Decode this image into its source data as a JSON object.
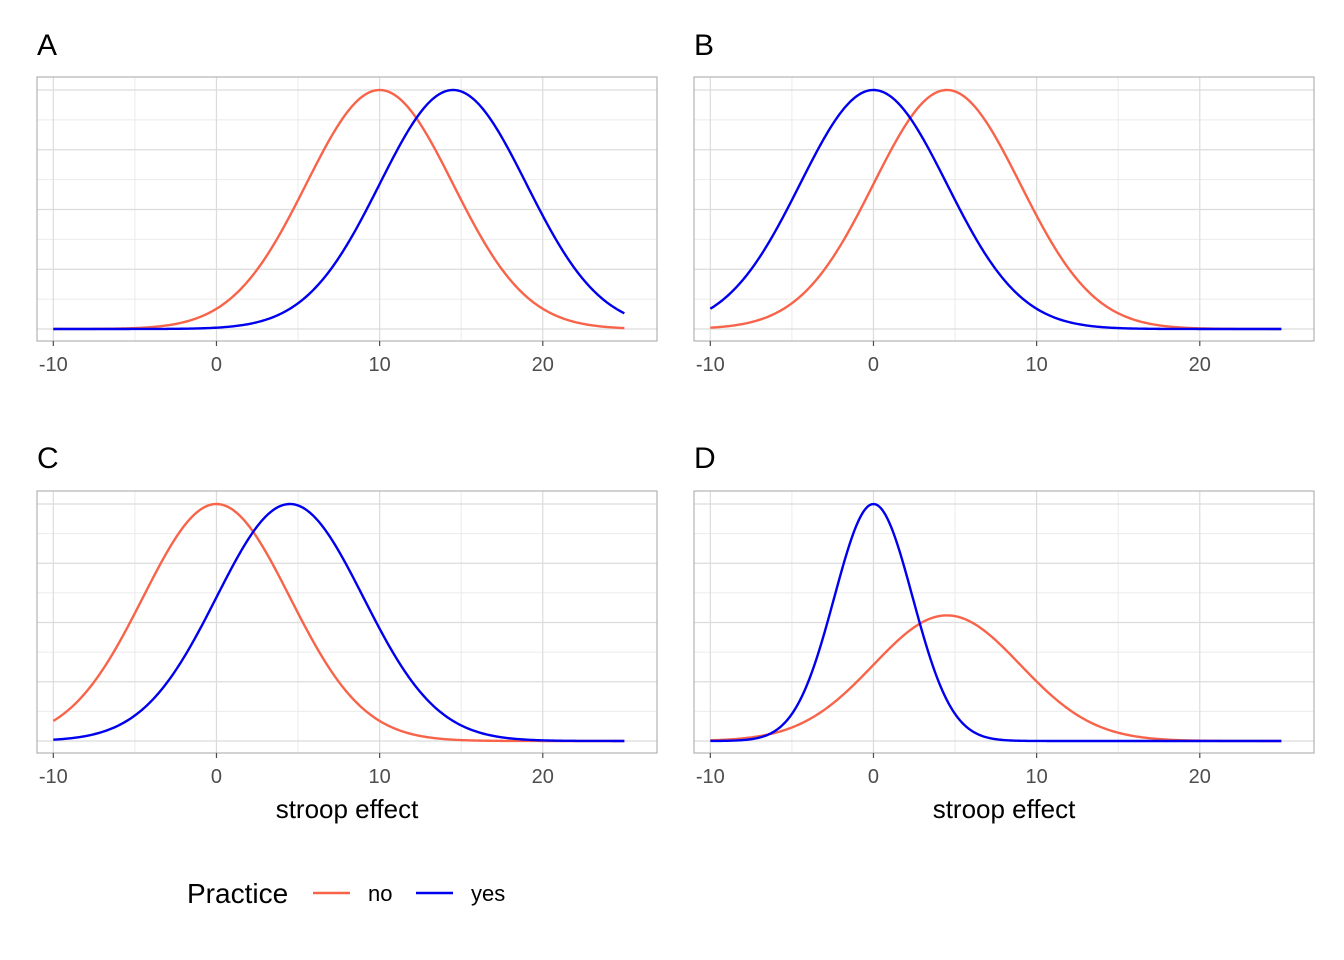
{
  "legend": {
    "title": "Practice",
    "entries": [
      {
        "label": "no",
        "color": "#F8644A"
      },
      {
        "label": "yes",
        "color": "#0000EE"
      }
    ]
  },
  "chart_data": [
    {
      "type": "line",
      "panel": "A",
      "xlabel": "",
      "xlim": [
        -11,
        27
      ],
      "xticks": [
        "-10",
        "0",
        "10",
        "20"
      ],
      "xtick_values": [
        -10,
        0,
        10,
        20
      ],
      "grid": true,
      "series": [
        {
          "name": "no",
          "color": "#F8644A",
          "distribution": "normal",
          "mean": 10,
          "sd": 4.5,
          "peak_rel": 1.0
        },
        {
          "name": "yes",
          "color": "#0000EE",
          "distribution": "normal",
          "mean": 14.5,
          "sd": 4.5,
          "peak_rel": 1.0
        }
      ]
    },
    {
      "type": "line",
      "panel": "B",
      "xlabel": "",
      "xlim": [
        -11,
        27
      ],
      "xticks": [
        "-10",
        "0",
        "10",
        "20"
      ],
      "xtick_values": [
        -10,
        0,
        10,
        20
      ],
      "grid": true,
      "series": [
        {
          "name": "no",
          "color": "#F8644A",
          "distribution": "normal",
          "mean": 4.5,
          "sd": 4.5,
          "peak_rel": 1.0
        },
        {
          "name": "yes",
          "color": "#0000EE",
          "distribution": "normal",
          "mean": 0,
          "sd": 4.5,
          "peak_rel": 1.0
        }
      ]
    },
    {
      "type": "line",
      "panel": "C",
      "xlabel": "stroop effect",
      "xlim": [
        -11,
        27
      ],
      "xticks": [
        "-10",
        "0",
        "10",
        "20"
      ],
      "xtick_values": [
        -10,
        0,
        10,
        20
      ],
      "grid": true,
      "series": [
        {
          "name": "no",
          "color": "#F8644A",
          "distribution": "normal",
          "mean": 0,
          "sd": 4.5,
          "peak_rel": 1.0
        },
        {
          "name": "yes",
          "color": "#0000EE",
          "distribution": "normal",
          "mean": 4.5,
          "sd": 4.5,
          "peak_rel": 1.0
        }
      ]
    },
    {
      "type": "line",
      "panel": "D",
      "xlabel": "stroop effect",
      "xlim": [
        -11,
        27
      ],
      "xticks": [
        "-10",
        "0",
        "10",
        "20"
      ],
      "xtick_values": [
        -10,
        0,
        10,
        20
      ],
      "grid": true,
      "series": [
        {
          "name": "no",
          "color": "#F8644A",
          "distribution": "normal",
          "mean": 4.5,
          "sd": 4.5,
          "peak_rel": 0.53
        },
        {
          "name": "yes",
          "color": "#0000EE",
          "distribution": "normal",
          "mean": 0,
          "sd": 2.4,
          "peak_rel": 1.0
        }
      ]
    }
  ]
}
